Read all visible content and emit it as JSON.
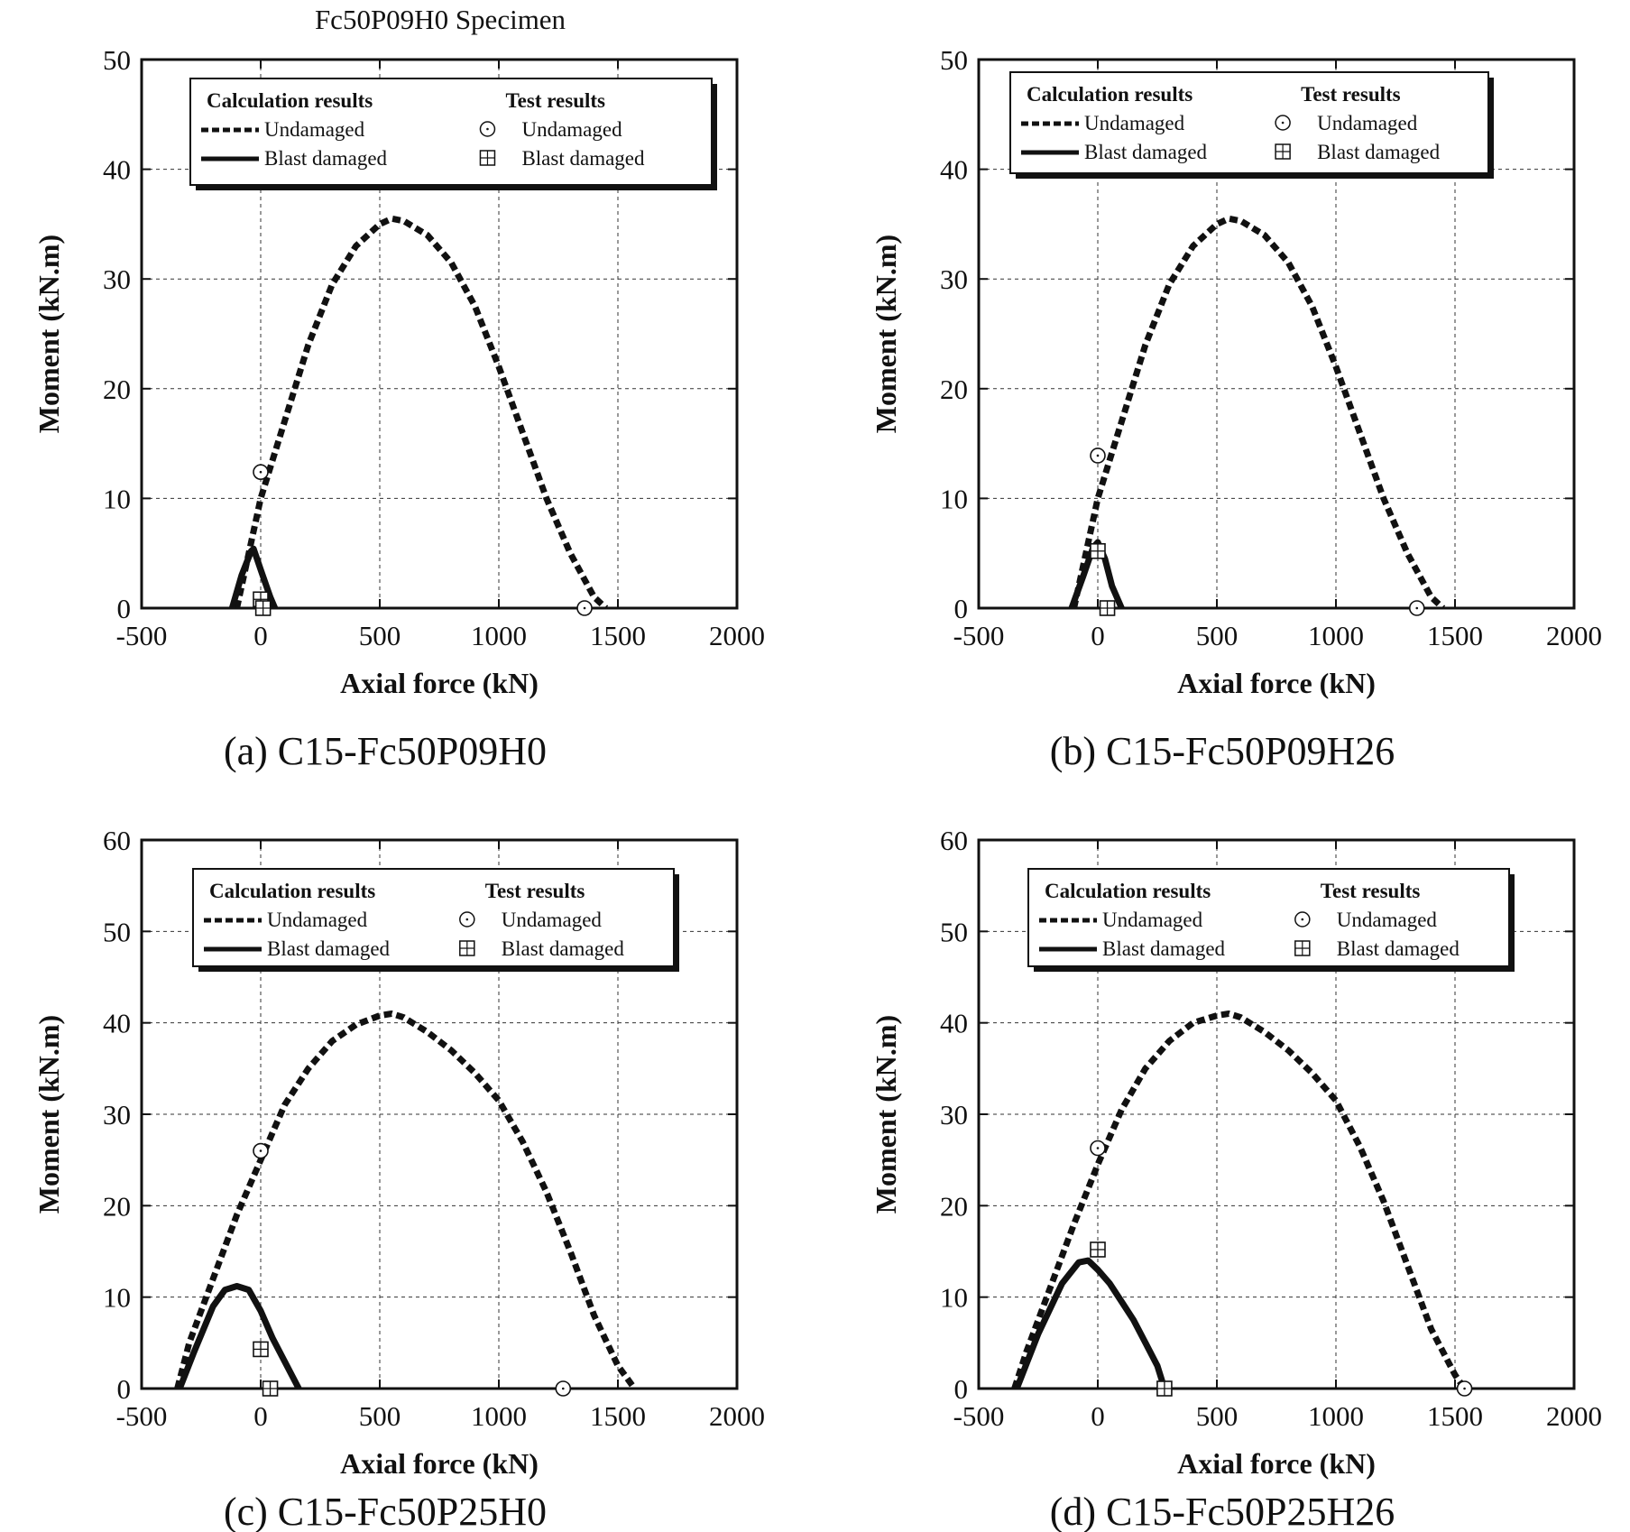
{
  "figure_title": "Fc50P09H0 Specimen",
  "legend": {
    "calc_heading": "Calculation results",
    "test_heading": "Test results",
    "undamaged": "Undamaged",
    "blast_damaged": "Blast damaged"
  },
  "chart_data": [
    {
      "type": "line",
      "caption": "(a) C15-Fc50P09H0",
      "xlabel": "Axial force (kN)",
      "ylabel": "Moment (kN.m)",
      "xlim": [
        -500,
        2000
      ],
      "ylim": [
        0,
        50
      ],
      "xticks": [
        "-500",
        "0",
        "500",
        "1000",
        "1500",
        "2000"
      ],
      "yticks": [
        "0",
        "10",
        "20",
        "30",
        "40",
        "50"
      ],
      "grid": true,
      "legend_position": "top",
      "calc_undamaged": {
        "x": [
          -100,
          -50,
          0,
          100,
          200,
          300,
          400,
          500,
          550,
          600,
          700,
          800,
          900,
          1000,
          1100,
          1200,
          1300,
          1400,
          1450
        ],
        "y": [
          0,
          5,
          10,
          17,
          24,
          29.5,
          33,
          35,
          35.5,
          35.3,
          34,
          31.5,
          27.5,
          22,
          16,
          10,
          5,
          1,
          0
        ]
      },
      "calc_blast_damaged": {
        "x": [
          -120,
          -80,
          -40,
          -30,
          0,
          40,
          60
        ],
        "y": [
          0,
          3,
          5.2,
          5.4,
          3.5,
          1,
          0
        ]
      },
      "test_undamaged": {
        "x": [
          0,
          1360
        ],
        "y": [
          12.4,
          0
        ]
      },
      "test_blast_damaged": {
        "x": [
          0,
          10
        ],
        "y": [
          0.8,
          0
        ]
      }
    },
    {
      "type": "line",
      "caption": "(b) C15-Fc50P09H26",
      "xlabel": "Axial force (kN)",
      "ylabel": "Moment (kN.m)",
      "xlim": [
        -500,
        2000
      ],
      "ylim": [
        0,
        50
      ],
      "xticks": [
        "-500",
        "0",
        "500",
        "1000",
        "1500",
        "2000"
      ],
      "yticks": [
        "0",
        "10",
        "20",
        "30",
        "40",
        "50"
      ],
      "grid": true,
      "legend_position": "top",
      "calc_undamaged": {
        "x": [
          -100,
          -50,
          0,
          100,
          200,
          300,
          400,
          500,
          550,
          600,
          700,
          800,
          900,
          1000,
          1100,
          1200,
          1300,
          1400,
          1450
        ],
        "y": [
          0,
          5,
          10,
          17,
          24,
          29.5,
          33,
          35,
          35.5,
          35.3,
          34,
          31.5,
          27.5,
          22,
          16,
          10,
          5,
          1,
          0
        ]
      },
      "calc_blast_damaged": {
        "x": [
          -110,
          -60,
          -20,
          0,
          30,
          60,
          100
        ],
        "y": [
          0,
          3,
          5.5,
          6,
          4.5,
          2,
          0
        ]
      },
      "test_undamaged": {
        "x": [
          0,
          1340
        ],
        "y": [
          13.9,
          0
        ]
      },
      "test_blast_damaged": {
        "x": [
          0,
          40
        ],
        "y": [
          5.2,
          0
        ]
      }
    },
    {
      "type": "line",
      "caption": "(c) C15-Fc50P25H0",
      "xlabel": "Axial force (kN)",
      "ylabel": "Moment (kN.m)",
      "xlim": [
        -500,
        2000
      ],
      "ylim": [
        0,
        60
      ],
      "xticks": [
        "-500",
        "0",
        "500",
        "1000",
        "1500",
        "2000"
      ],
      "yticks": [
        "0",
        "10",
        "20",
        "30",
        "40",
        "50",
        "60"
      ],
      "grid": true,
      "legend_position": "top",
      "calc_undamaged": {
        "x": [
          -350,
          -300,
          -200,
          -100,
          0,
          100,
          200,
          300,
          400,
          500,
          550,
          600,
          700,
          800,
          900,
          1000,
          1100,
          1200,
          1300,
          1400,
          1500,
          1570
        ],
        "y": [
          0,
          5,
          12,
          19,
          25,
          31,
          35,
          38,
          39.8,
          40.8,
          41,
          40.6,
          39,
          37,
          34.5,
          31.5,
          27,
          21.5,
          15,
          8,
          2.5,
          0
        ]
      },
      "calc_blast_damaged": {
        "x": [
          -340,
          -280,
          -200,
          -150,
          -100,
          -50,
          0,
          50,
          100,
          160
        ],
        "y": [
          0,
          4,
          9,
          10.8,
          11.2,
          10.8,
          8.5,
          5.5,
          3,
          0
        ]
      },
      "test_undamaged": {
        "x": [
          0,
          1270
        ],
        "y": [
          26,
          0
        ]
      },
      "test_blast_damaged": {
        "x": [
          0,
          40
        ],
        "y": [
          4.3,
          0
        ]
      }
    },
    {
      "type": "line",
      "caption": "(d) C15-Fc50P25H26",
      "xlabel": "Axial force (kN)",
      "ylabel": "Moment (kN.m)",
      "xlim": [
        -500,
        2000
      ],
      "ylim": [
        0,
        60
      ],
      "xticks": [
        "-500",
        "0",
        "500",
        "1000",
        "1500",
        "2000"
      ],
      "yticks": [
        "0",
        "10",
        "20",
        "30",
        "40",
        "50",
        "60"
      ],
      "grid": true,
      "legend_position": "top",
      "calc_undamaged": {
        "x": [
          -350,
          -300,
          -200,
          -100,
          0,
          100,
          200,
          300,
          400,
          500,
          550,
          600,
          700,
          800,
          900,
          1000,
          1100,
          1200,
          1300,
          1400,
          1500,
          1540
        ],
        "y": [
          0,
          4,
          11,
          18,
          24.5,
          30.5,
          35,
          38,
          40,
          40.8,
          41,
          40.6,
          39,
          37,
          34.5,
          31.5,
          26.5,
          20.5,
          13.5,
          6.5,
          1.5,
          0
        ]
      },
      "calc_blast_damaged": {
        "x": [
          -340,
          -250,
          -150,
          -80,
          -40,
          0,
          50,
          100,
          150,
          200,
          250,
          280
        ],
        "y": [
          0,
          6,
          11.5,
          13.8,
          14,
          13,
          11.5,
          9.5,
          7.5,
          5,
          2.5,
          0
        ]
      },
      "test_undamaged": {
        "x": [
          0,
          1540
        ],
        "y": [
          26.3,
          0
        ]
      },
      "test_blast_damaged": {
        "x": [
          0,
          280
        ],
        "y": [
          15.2,
          0
        ]
      }
    }
  ]
}
